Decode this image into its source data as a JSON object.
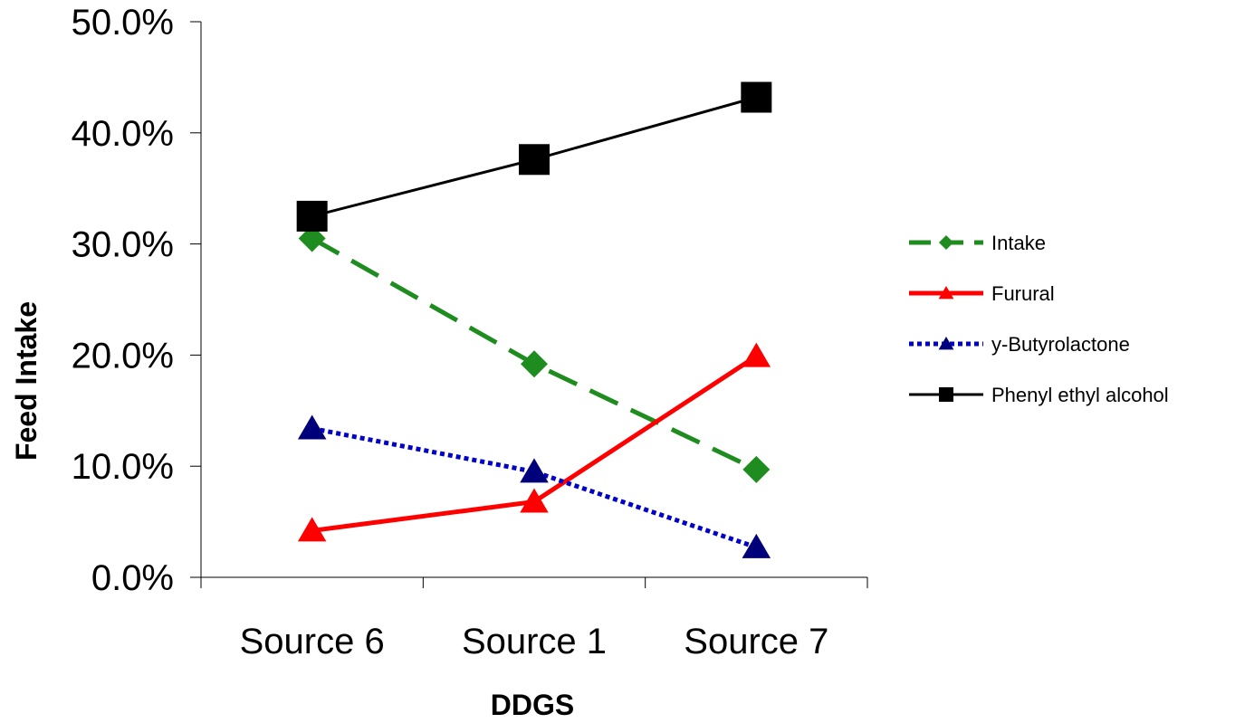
{
  "chart_data": {
    "type": "line",
    "categories": [
      "Source 6",
      "Source 1",
      "Source 7"
    ],
    "xlabel": "DDGS",
    "ylabel": "Feed Intake",
    "ylim": [
      0,
      0.5
    ],
    "yticks": [
      {
        "value": 0.0,
        "label": "0.0%"
      },
      {
        "value": 0.1,
        "label": "10.0%"
      },
      {
        "value": 0.2,
        "label": "20.0%"
      },
      {
        "value": 0.3,
        "label": "30.0%"
      },
      {
        "value": 0.4,
        "label": "40.0%"
      },
      {
        "value": 0.5,
        "label": "50.0%"
      }
    ],
    "grid": false,
    "legend_position": "right",
    "series": [
      {
        "name": "Intake",
        "values": [
          0.305,
          0.192,
          0.097
        ],
        "color": "#1e8c1e",
        "marker": "diamond",
        "line": "dashed"
      },
      {
        "name": "Furural",
        "values": [
          0.042,
          0.068,
          0.199
        ],
        "color": "#ff0000",
        "marker": "triangle",
        "line": "solid"
      },
      {
        "name": "y-Butyrolactone",
        "values": [
          0.134,
          0.095,
          0.027
        ],
        "color": "#0000c8",
        "marker": "triangle",
        "marker_color": "#00007a",
        "line": "dotted"
      },
      {
        "name": "Phenyl ethyl alcohol",
        "values": [
          0.325,
          0.376,
          0.432
        ],
        "color": "#000000",
        "marker": "square",
        "line": "solid"
      }
    ]
  }
}
